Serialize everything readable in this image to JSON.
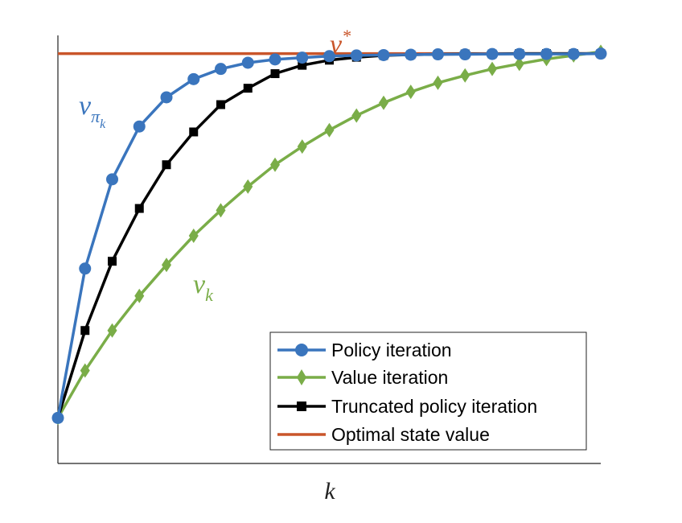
{
  "chart_data": {
    "type": "line",
    "xlabel": "k",
    "ylabel": "",
    "grid": false,
    "xlim": [
      0,
      20
    ],
    "ylim": [
      -1.25,
      10.5
    ],
    "x": [
      0,
      1,
      2,
      3,
      4,
      5,
      6,
      7,
      8,
      9,
      10,
      11,
      12,
      13,
      14,
      15,
      16,
      17,
      18,
      19,
      20
    ],
    "legend_position": "bottom-right",
    "series": [
      {
        "name": "Policy iteration",
        "key": "policy",
        "color": "#3a75bd",
        "marker": "circle",
        "values": [
          0,
          4.1,
          6.55,
          8.0,
          8.8,
          9.3,
          9.58,
          9.75,
          9.84,
          9.89,
          9.93,
          9.95,
          9.96,
          9.97,
          9.98,
          9.98,
          9.99,
          9.99,
          9.99,
          9.99,
          10.0
        ]
      },
      {
        "name": "Value iteration",
        "key": "value",
        "color": "#7aad48",
        "marker": "diamond",
        "values": [
          0,
          1.3,
          2.4,
          3.35,
          4.2,
          5.0,
          5.7,
          6.35,
          6.95,
          7.45,
          7.9,
          8.3,
          8.65,
          8.95,
          9.2,
          9.4,
          9.58,
          9.72,
          9.85,
          9.95,
          10.05
        ]
      },
      {
        "name": "Truncated policy iteration",
        "key": "truncated",
        "color": "#000000",
        "marker": "square",
        "values": [
          0,
          2.4,
          4.3,
          5.75,
          6.95,
          7.85,
          8.6,
          9.05,
          9.45,
          9.68,
          9.82,
          9.9,
          9.95,
          9.97,
          9.98,
          9.99,
          9.99,
          10.0,
          10.0,
          10.0,
          10.0
        ]
      },
      {
        "name": "Optimal state value",
        "key": "optimal",
        "color": "#c9552a",
        "marker": "none",
        "values": [
          10,
          10,
          10,
          10,
          10,
          10,
          10,
          10,
          10,
          10,
          10,
          10,
          10,
          10,
          10,
          10,
          10,
          10,
          10,
          10,
          10
        ]
      }
    ],
    "annotations": [
      {
        "base": "v",
        "sup": "*",
        "color": "#c9552a"
      },
      {
        "base": "v",
        "sub": "π",
        "subsub": "k",
        "color": "#3a75bd"
      },
      {
        "base": "v",
        "sub": "k",
        "color": "#7aad48"
      }
    ]
  }
}
